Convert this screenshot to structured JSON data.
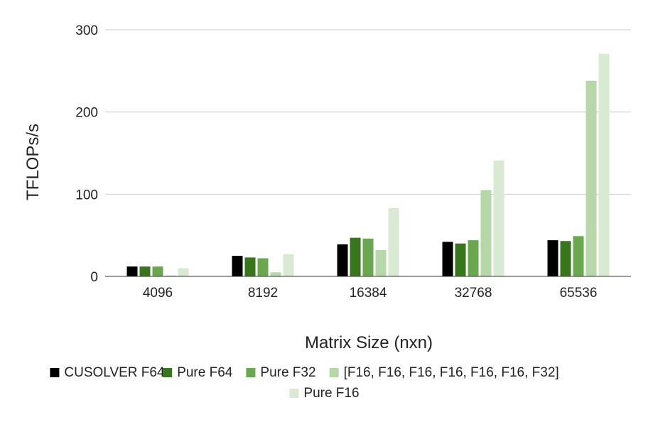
{
  "chart_data": {
    "type": "bar",
    "title": "",
    "xlabel": "Matrix Size (nxn)",
    "ylabel": "TFLOPs/s",
    "ylim": [
      0,
      300
    ],
    "yticks": [
      0,
      100,
      200,
      300
    ],
    "grid": true,
    "legend_position": "bottom",
    "categories": [
      "4096",
      "8192",
      "16384",
      "32768",
      "65536"
    ],
    "series": [
      {
        "name": "CUSOLVER F64",
        "color": "#000000",
        "values": [
          12,
          25,
          39,
          42,
          44
        ]
      },
      {
        "name": "Pure F64",
        "color": "#38761d",
        "values": [
          12,
          23,
          47,
          40,
          43
        ]
      },
      {
        "name": "Pure F32",
        "color": "#6aa84f",
        "values": [
          12,
          22,
          46,
          44,
          49
        ]
      },
      {
        "name": "[F16, F16, F16, F16, F16, F16, F32]",
        "color": "#b6d7a8",
        "values": [
          1,
          5,
          32,
          105,
          238
        ]
      },
      {
        "name": "Pure F16",
        "color": "#d9ead3",
        "values": [
          10,
          27,
          83,
          141,
          271
        ]
      }
    ]
  }
}
